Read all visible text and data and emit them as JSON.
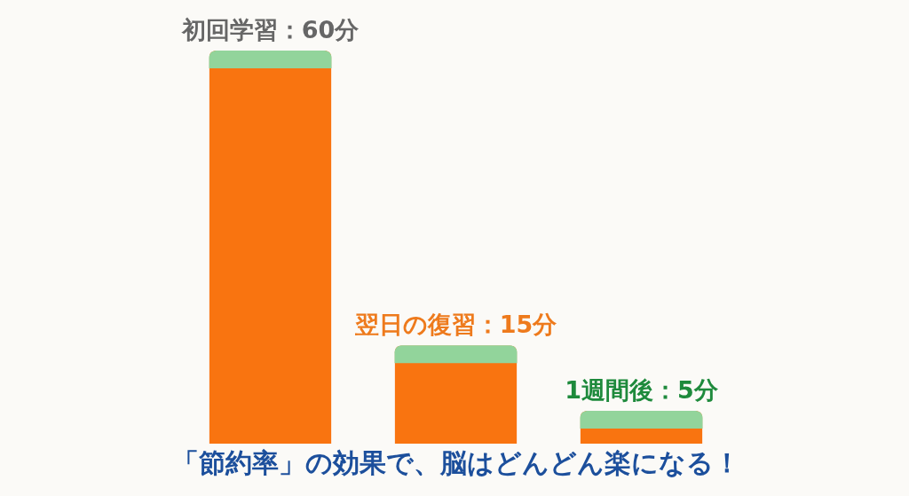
{
  "chart_data": {
    "type": "bar",
    "title": "「節約率」の効果で、脳はどんどん楽になる！",
    "categories": [
      null,
      null,
      null
    ],
    "values": [
      60,
      15,
      5
    ],
    "color": "#f97410",
    "value_labels": [
      "初回学習：60分",
      "翌日の復習：15分",
      "1週間後：5分"
    ]
  }
}
